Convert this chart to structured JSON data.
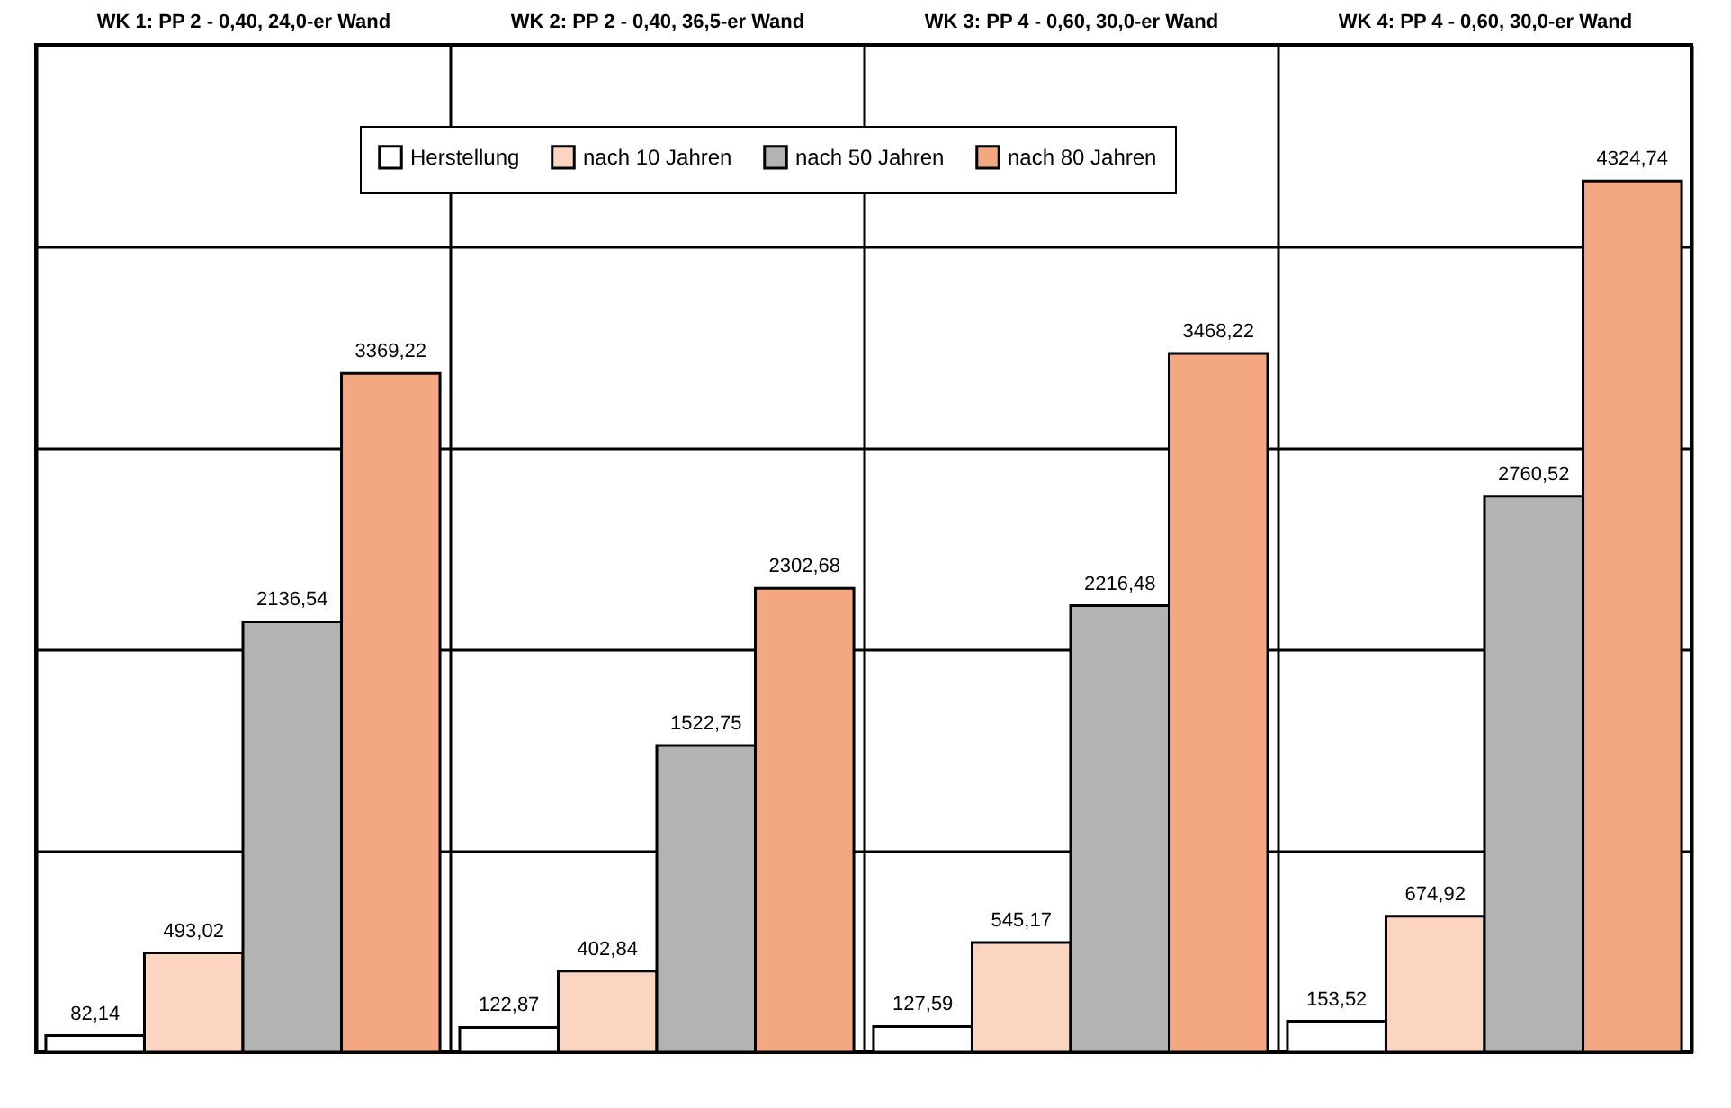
{
  "chart_data": {
    "type": "bar",
    "categories": [
      "WK 1: PP 2 - 0,40, 24,0-er Wand",
      "WK 2: PP 2 - 0,40, 36,5-er Wand",
      "WK 3: PP 4 - 0,60, 30,0-er Wand",
      "WK 4: PP 4 - 0,60, 30,0-er Wand"
    ],
    "series": [
      {
        "name": "Herstellung",
        "color": "#ffffff",
        "values": [
          82.14,
          122.87,
          127.59,
          153.52
        ],
        "value_labels": [
          "82,14",
          "122,87",
          "127,59",
          "153,52"
        ]
      },
      {
        "name": "nach 10 Jahren",
        "color": "#fcd5c0",
        "values": [
          493.02,
          402.84,
          545.17,
          674.92
        ],
        "value_labels": [
          "493,02",
          "402,84",
          "545,17",
          "674,92"
        ]
      },
      {
        "name": "nach 50 Jahren",
        "color": "#b3b3b3",
        "values": [
          2136.54,
          1522.75,
          2216.48,
          2760.52
        ],
        "value_labels": [
          "2136,54",
          "1522,75",
          "2216,48",
          "2760,52"
        ]
      },
      {
        "name": "nach 80 Jahren",
        "color": "#f4a882",
        "values": [
          3369.22,
          2302.68,
          3468.22,
          4324.74
        ],
        "value_labels": [
          "3369,22",
          "2302,68",
          "3468,22",
          "4324,74"
        ]
      }
    ],
    "ylim": [
      0,
      5000
    ],
    "yticks": [
      {
        "value": 1000,
        "label": null
      },
      {
        "value": 2000,
        "label": null
      },
      {
        "value": 3000,
        "label": null
      },
      {
        "value": 4000,
        "label": null
      }
    ],
    "tick_labels": "x",
    "grid": true,
    "legend": "top"
  }
}
